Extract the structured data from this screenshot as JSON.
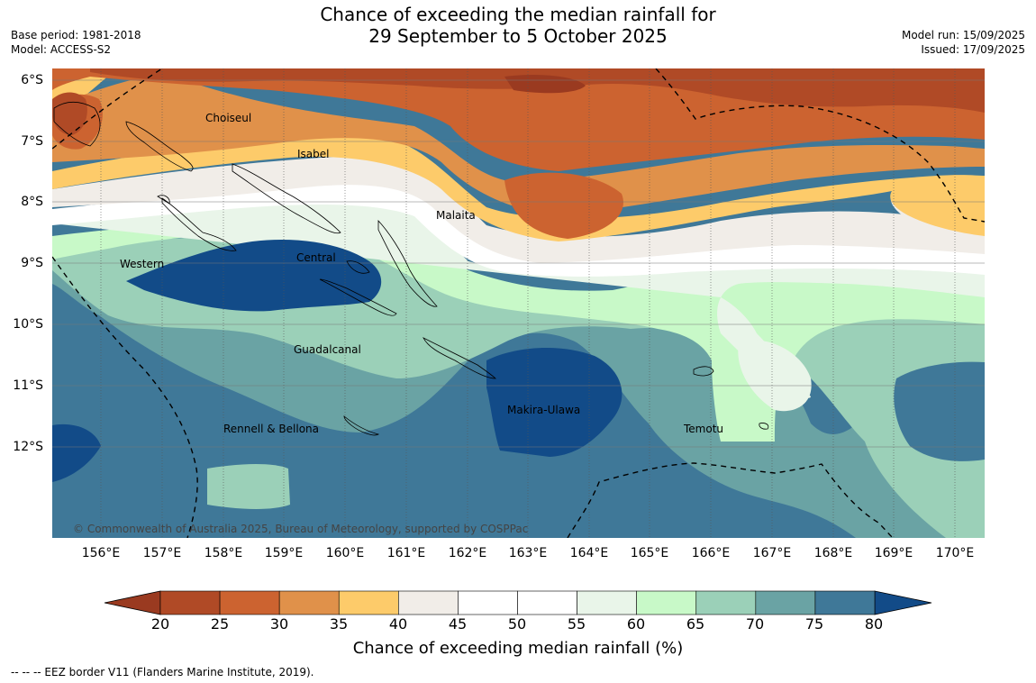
{
  "title": {
    "line1": "Chance of exceeding the median rainfall for",
    "line2": "29 September to 5 October 2025"
  },
  "meta_left": {
    "base_period": "Base period: 1981-2018",
    "model": "Model: ACCESS-S2"
  },
  "meta_right": {
    "model_run": "Model run: 15/09/2025",
    "issued": "Issued: 17/09/2025"
  },
  "lat_labels": [
    "6°S",
    "7°S",
    "8°S",
    "9°S",
    "10°S",
    "11°S",
    "12°S"
  ],
  "lon_labels": [
    "156°E",
    "157°E",
    "158°E",
    "159°E",
    "160°E",
    "161°E",
    "162°E",
    "163°E",
    "164°E",
    "165°E",
    "166°E",
    "167°E",
    "168°E",
    "169°E",
    "170°E"
  ],
  "provinces": [
    "Choiseul",
    "Isabel",
    "Malaita",
    "Western",
    "Central",
    "Guadalcanal",
    "Makira-Ulawa",
    "Rennell & Bellona",
    "Temotu"
  ],
  "copyright": "© Commonwealth of Australia 2025, Bureau of Meteorology, supported by COSPPac",
  "colorbar": {
    "ticks": [
      "20",
      "25",
      "30",
      "35",
      "40",
      "45",
      "50",
      "55",
      "60",
      "65",
      "70",
      "75",
      "80"
    ],
    "colors": [
      "#b04a26",
      "#cc6330",
      "#e0914a",
      "#fdcb6a",
      "#f1ede8",
      "#ffffff",
      "#ffffff",
      "#e9f5e9",
      "#c8f9c8",
      "#9bd0b8",
      "#6aa3a4",
      "#3f7898"
    ],
    "under_color": "#9a3a20",
    "over_color": "#124b88",
    "label": "Chance of exceeding median rainfall (%)"
  },
  "eez_note": "--  --  -- EEZ border V11 (Flanders Marine Institute, 2019)."
}
